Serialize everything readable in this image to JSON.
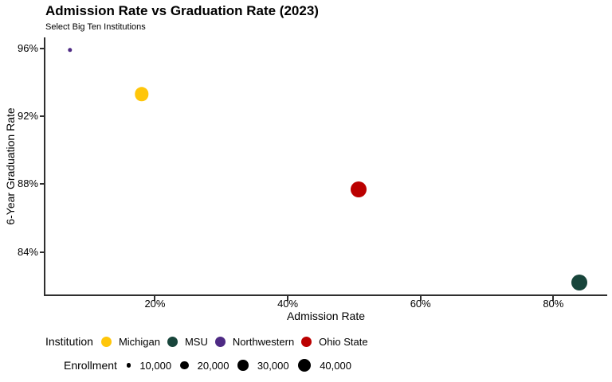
{
  "chart_data": {
    "type": "scatter",
    "title": "Admission Rate vs Graduation Rate (2023)",
    "subtitle": "Select Big Ten Institutions",
    "xlabel": "Admission Rate",
    "ylabel": "6-Year Graduation Rate",
    "grid": false,
    "x_axis": {
      "domain": [
        3.5,
        88
      ],
      "ticks": [
        20,
        40,
        60,
        80
      ],
      "tick_labels": [
        "20%",
        "40%",
        "60%",
        "80%"
      ]
    },
    "y_axis": {
      "domain": [
        81.5,
        96.6
      ],
      "ticks": [
        96,
        92,
        88,
        84
      ],
      "tick_labels": [
        "96%",
        "92%",
        "88%",
        "84%"
      ]
    },
    "points": [
      {
        "name": "Northwestern",
        "admission_rate_pct": 7.2,
        "graduation_rate_pct": 95.9,
        "color": "#4E2A84",
        "radius_px": 2.7
      },
      {
        "name": "Michigan",
        "admission_rate_pct": 18.0,
        "graduation_rate_pct": 93.3,
        "color": "#FFC60A",
        "radius_px": 8.7
      },
      {
        "name": "Ohio State",
        "admission_rate_pct": 50.7,
        "graduation_rate_pct": 87.7,
        "color": "#BB0000",
        "radius_px": 10
      },
      {
        "name": "MSU",
        "admission_rate_pct": 83.9,
        "graduation_rate_pct": 82.2,
        "color": "#18453B",
        "radius_px": 10
      }
    ],
    "legend_institution": {
      "title": "Institution",
      "items": [
        {
          "label": "Michigan",
          "color": "#FFC60A"
        },
        {
          "label": "MSU",
          "color": "#18453B"
        },
        {
          "label": "Northwestern",
          "color": "#4E2A84"
        },
        {
          "label": "Ohio State",
          "color": "#BB0000"
        }
      ]
    },
    "legend_enrollment": {
      "title": "Enrollment",
      "items": [
        {
          "label": "10,000",
          "radius_px": 2.7
        },
        {
          "label": "20,000",
          "radius_px": 5.3
        },
        {
          "label": "30,000",
          "radius_px": 6.7
        },
        {
          "label": "40,000",
          "radius_px": 8.3
        }
      ]
    },
    "colors": {
      "axis_line": "#2f2f2f",
      "text": "#000000",
      "background": "#ffffff",
      "size_legend_dot": "#000000"
    }
  }
}
